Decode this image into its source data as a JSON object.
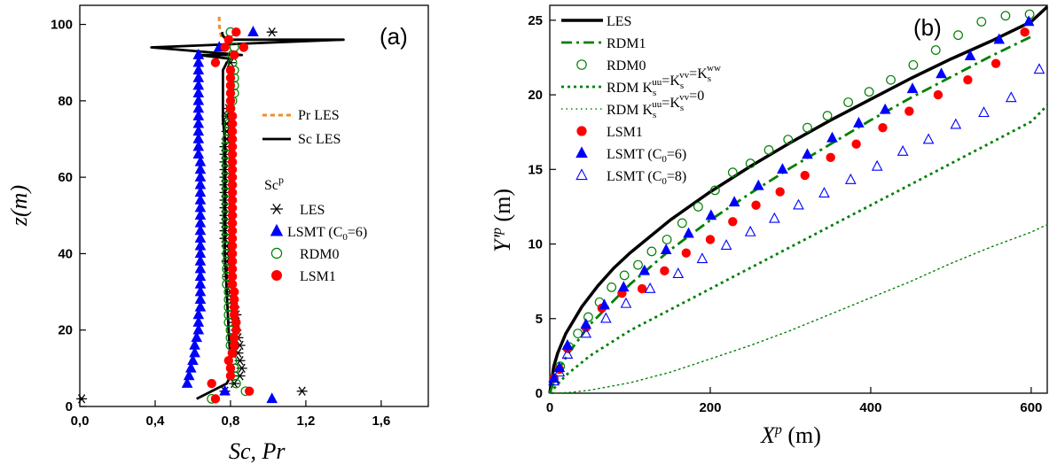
{
  "chart_data": [
    {
      "type": "scatter",
      "panel_label": "(a)",
      "xlabel": "Sc, Pr",
      "ylabel": "z(m)",
      "xlim": [
        0,
        1.85
      ],
      "ylim": [
        0,
        105
      ],
      "x_tick_labels": [
        "0,0",
        "0,4",
        "0,8",
        "1,2",
        "1,6"
      ],
      "x_ticks": [
        0,
        0.4,
        0.8,
        1.2,
        1.6
      ],
      "y_ticks": [
        0,
        20,
        40,
        60,
        80,
        100
      ],
      "legend_title": "Sc",
      "legend_title_sup": "p",
      "legend_placement": "right",
      "series": [
        {
          "name": "Pr  LES",
          "style": "dashed-line",
          "color": "#f28c28",
          "x": [
            0.74,
            0.74,
            0.745,
            0.75,
            0.75
          ],
          "y": [
            102,
            100,
            98,
            97,
            96
          ]
        },
        {
          "name": "Sc LES",
          "style": "line",
          "color": "#000000",
          "x": [
            0.62,
            0.7,
            0.78,
            0.8,
            0.8,
            0.79,
            0.78,
            0.77,
            0.77,
            0.77,
            0.77,
            0.76,
            0.76,
            0.76,
            0.76,
            0.78,
            0.8,
            0.63,
            0.86,
            0.38,
            1.4,
            0.78,
            0.76,
            0.755
          ],
          "y": [
            2,
            4,
            6,
            8,
            12,
            20,
            30,
            40,
            50,
            60,
            70,
            75,
            80,
            85,
            88,
            90,
            91,
            92,
            92,
            94,
            96,
            96,
            97,
            98
          ]
        },
        {
          "name": "LES",
          "marker": "asterisk",
          "color": "#000000",
          "x": [
            0.01,
            0.77,
            1.18,
            0.82,
            0.85,
            0.86,
            0.85,
            0.84,
            0.85,
            0.84,
            0.83,
            0.82,
            0.83,
            0.82,
            0.81,
            0.8,
            0.8,
            0.79,
            0.79,
            0.78,
            0.78,
            0.78,
            0.77,
            0.77,
            0.77,
            0.77,
            0.77,
            0.77,
            0.77,
            0.77,
            0.77,
            0.77,
            0.77,
            0.77,
            0.77,
            0.78,
            0.78,
            0.78,
            0.78,
            0.79,
            0.8,
            1.02
          ],
          "y": [
            2,
            4,
            4,
            6,
            8,
            10,
            12,
            14,
            16,
            18,
            20,
            22,
            24,
            26,
            28,
            30,
            32,
            34,
            36,
            38,
            40,
            42,
            44,
            46,
            48,
            50,
            52,
            54,
            56,
            58,
            60,
            62,
            64,
            66,
            68,
            70,
            72,
            74,
            76,
            78,
            90,
            98
          ]
        },
        {
          "name": "LSMT (C0=6)",
          "name_main": "LSMT (C",
          "name_sub": "0",
          "name_tail": "=6)",
          "marker": "filled-triangle",
          "color": "#0000ff",
          "x": [
            1.02,
            0.77,
            0.57,
            0.58,
            0.59,
            0.6,
            0.61,
            0.61,
            0.62,
            0.63,
            0.63,
            0.63,
            0.64,
            0.64,
            0.64,
            0.64,
            0.64,
            0.64,
            0.64,
            0.64,
            0.64,
            0.64,
            0.64,
            0.64,
            0.64,
            0.64,
            0.64,
            0.64,
            0.64,
            0.64,
            0.64,
            0.64,
            0.63,
            0.63,
            0.63,
            0.63,
            0.63,
            0.63,
            0.63,
            0.63,
            0.63,
            0.63,
            0.63,
            0.63,
            0.63,
            0.63,
            0.74,
            0.92
          ],
          "y": [
            2,
            4,
            6,
            8,
            10,
            12,
            14,
            16,
            18,
            20,
            22,
            24,
            26,
            28,
            30,
            32,
            34,
            36,
            38,
            40,
            42,
            44,
            46,
            48,
            50,
            52,
            54,
            56,
            58,
            60,
            62,
            64,
            66,
            68,
            70,
            72,
            74,
            76,
            78,
            80,
            82,
            84,
            86,
            88,
            90,
            92,
            94,
            98
          ]
        },
        {
          "name": "RDM0",
          "marker": "open-circle",
          "color": "#008000",
          "x": [
            0.7,
            0.88,
            0.83,
            0.82,
            0.82,
            0.81,
            0.81,
            0.8,
            0.8,
            0.8,
            0.79,
            0.79,
            0.79,
            0.79,
            0.79,
            0.78,
            0.78,
            0.78,
            0.78,
            0.78,
            0.78,
            0.78,
            0.78,
            0.78,
            0.78,
            0.78,
            0.78,
            0.78,
            0.78,
            0.78,
            0.78,
            0.78,
            0.78,
            0.78,
            0.78,
            0.79,
            0.79,
            0.8,
            0.8,
            0.81,
            0.82,
            0.82,
            0.82,
            0.82,
            0.81,
            0.81,
            0.82,
            0.8
          ],
          "y": [
            2,
            4,
            6,
            8,
            10,
            12,
            14,
            16,
            18,
            20,
            22,
            24,
            26,
            28,
            30,
            32,
            34,
            36,
            38,
            40,
            42,
            44,
            46,
            48,
            50,
            52,
            54,
            56,
            58,
            60,
            62,
            64,
            66,
            68,
            70,
            72,
            74,
            76,
            78,
            80,
            82,
            84,
            86,
            88,
            90,
            92,
            94,
            98
          ]
        },
        {
          "name": "LSM1",
          "marker": "filled-circle",
          "color": "#ff0000",
          "x": [
            0.72,
            0.9,
            0.7,
            0.8,
            0.8,
            0.79,
            0.81,
            0.82,
            0.82,
            0.83,
            0.83,
            0.82,
            0.82,
            0.82,
            0.82,
            0.81,
            0.81,
            0.81,
            0.81,
            0.81,
            0.81,
            0.81,
            0.81,
            0.81,
            0.81,
            0.81,
            0.81,
            0.81,
            0.81,
            0.81,
            0.81,
            0.81,
            0.81,
            0.81,
            0.81,
            0.81,
            0.81,
            0.81,
            0.8,
            0.8,
            0.8,
            0.8,
            0.8,
            0.8,
            0.72,
            0.82,
            0.77,
            0.87,
            0.79,
            0.83
          ],
          "y": [
            2,
            4,
            6,
            8,
            10,
            12,
            14,
            16,
            18,
            20,
            22,
            24,
            26,
            28,
            30,
            32,
            34,
            36,
            38,
            40,
            42,
            44,
            46,
            48,
            50,
            52,
            54,
            56,
            58,
            60,
            62,
            64,
            66,
            68,
            70,
            72,
            74,
            76,
            78,
            80,
            82,
            84,
            86,
            88,
            90,
            92,
            94,
            94,
            96,
            98
          ]
        }
      ]
    },
    {
      "type": "line",
      "panel_label": "(b)",
      "xlabel": "X",
      "xlabel_sup": "p",
      "xlabel_unit": " (m)",
      "ylabel": "Y'",
      "ylabel_sup": "p",
      "ylabel_unit": " (m)",
      "xlim": [
        0,
        620
      ],
      "ylim": [
        0,
        26
      ],
      "x_ticks": [
        0,
        200,
        400,
        600
      ],
      "y_ticks": [
        0,
        5,
        10,
        15,
        20,
        25
      ],
      "legend_placement": "top-left",
      "series": [
        {
          "name": "LES",
          "style": "thick-line",
          "color": "#000000",
          "x": [
            0,
            5,
            10,
            20,
            40,
            60,
            80,
            100,
            150,
            200,
            250,
            300,
            350,
            400,
            450,
            500,
            550,
            600,
            620
          ],
          "y": [
            0,
            1.8,
            2.7,
            4.0,
            5.8,
            7.2,
            8.4,
            9.4,
            11.6,
            13.5,
            15.2,
            16.8,
            18.3,
            19.7,
            21.1,
            22.4,
            23.6,
            24.9,
            25.9
          ]
        },
        {
          "name": "RDM1",
          "style": "dash-dot",
          "color": "#008000",
          "x": [
            0,
            10,
            25,
            50,
            100,
            150,
            200,
            250,
            300,
            350,
            400,
            450,
            500,
            550,
            600
          ],
          "y": [
            0,
            1.5,
            2.8,
            4.6,
            7.3,
            9.6,
            11.6,
            13.4,
            15.1,
            16.7,
            18.3,
            19.8,
            21.2,
            22.6,
            23.9
          ]
        },
        {
          "name": "RDM0",
          "marker": "open-circle",
          "color": "#008000",
          "x": [
            5,
            13,
            24,
            35,
            48,
            62,
            77,
            93,
            110,
            127,
            146,
            165,
            185,
            206,
            228,
            250,
            273,
            297,
            321,
            346,
            372,
            398,
            425,
            453,
            481,
            509,
            538,
            568,
            598
          ],
          "y": [
            1.0,
            1.8,
            3.1,
            4.0,
            5.1,
            6.1,
            7.1,
            7.9,
            8.6,
            9.5,
            10.3,
            11.4,
            12.5,
            13.6,
            14.8,
            15.4,
            16.3,
            17.0,
            17.8,
            18.6,
            19.5,
            20.2,
            21.0,
            22.0,
            23.0,
            24.0,
            24.9,
            25.3,
            25.4
          ]
        },
        {
          "name": "RDM K_s^uu=K_s^vv=K_s^ww",
          "style": "dotted",
          "color": "#008000",
          "x": [
            0,
            20,
            50,
            100,
            150,
            200,
            250,
            300,
            350,
            400,
            450,
            500,
            550,
            600,
            620
          ],
          "y": [
            0,
            1.2,
            2.5,
            4.2,
            5.6,
            7.0,
            8.4,
            9.8,
            11.2,
            12.6,
            14.0,
            15.4,
            16.8,
            18.2,
            19.3
          ]
        },
        {
          "name": "RDM K_s^uu=K_s^vv=0",
          "style": "fine-dotted",
          "color": "#008000",
          "x": [
            0,
            25,
            50,
            100,
            150,
            200,
            250,
            300,
            350,
            400,
            450,
            500,
            550,
            600,
            620
          ],
          "y": [
            0,
            0.05,
            0.2,
            0.7,
            1.4,
            2.3,
            3.2,
            4.2,
            5.3,
            6.4,
            7.5,
            8.7,
            9.8,
            10.8,
            11.3
          ]
        },
        {
          "name": "LSM1",
          "marker": "filled-circle",
          "color": "#ff0000",
          "x": [
            5,
            12,
            22,
            45,
            65,
            90,
            115,
            143,
            170,
            200,
            228,
            257,
            287,
            318,
            350,
            382,
            415,
            448,
            484,
            521,
            556,
            592
          ],
          "y": [
            1.0,
            1.6,
            3.0,
            4.4,
            5.7,
            6.7,
            7.0,
            8.2,
            9.4,
            10.3,
            11.5,
            12.6,
            13.5,
            14.6,
            15.8,
            16.7,
            17.8,
            18.9,
            20.0,
            21.0,
            22.1,
            24.2
          ]
        },
        {
          "name": "LSMT (C0=6)",
          "name_main": "LSMT (C",
          "name_sub": "0",
          "name_tail": "=6)",
          "marker": "filled-triangle",
          "color": "#0000ff",
          "x": [
            5,
            12,
            22,
            45,
            68,
            92,
            118,
            145,
            173,
            201,
            230,
            260,
            290,
            321,
            352,
            385,
            418,
            452,
            488,
            524,
            560,
            597
          ],
          "y": [
            1.0,
            1.7,
            3.2,
            4.6,
            5.9,
            7.1,
            8.2,
            9.6,
            10.7,
            11.9,
            12.8,
            13.9,
            15.0,
            16.0,
            17.1,
            18.1,
            19.0,
            20.4,
            21.4,
            22.6,
            23.7,
            24.9
          ]
        },
        {
          "name": "LSMT (C0=8)",
          "name_main": "LSMT (C",
          "name_sub": "0",
          "name_tail": "=8)",
          "marker": "open-triangle",
          "color": "#0000ff",
          "x": [
            5,
            12,
            22,
            45,
            70,
            95,
            125,
            160,
            190,
            220,
            250,
            280,
            310,
            342,
            375,
            408,
            440,
            472,
            506,
            541,
            575,
            610
          ],
          "y": [
            0.8,
            1.4,
            2.6,
            4.0,
            5.0,
            6.0,
            7.0,
            8.0,
            9.0,
            9.9,
            10.8,
            11.7,
            12.6,
            13.4,
            14.3,
            15.2,
            16.2,
            17.0,
            18.0,
            18.8,
            19.8,
            21.7
          ]
        }
      ]
    }
  ]
}
